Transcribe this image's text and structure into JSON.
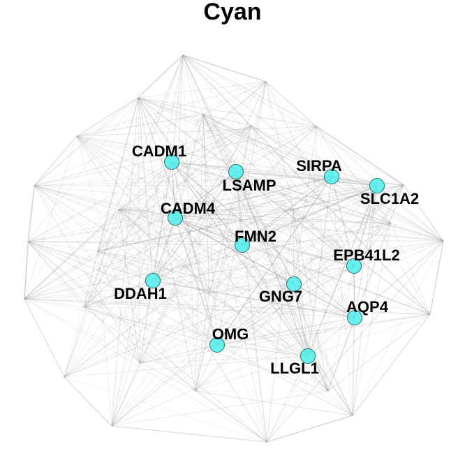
{
  "title": "Cyan",
  "node_color": "#4ff0ec",
  "edge_color": "#9a9a9a",
  "nodes": [
    {
      "id": "CADM1",
      "label": "CADM1"
    },
    {
      "id": "LSAMP",
      "label": "LSAMP"
    },
    {
      "id": "SIRPA",
      "label": "SIRPA"
    },
    {
      "id": "SLC1A2",
      "label": "SLC1A2"
    },
    {
      "id": "CADM4",
      "label": "CADM4"
    },
    {
      "id": "FMN2",
      "label": "FMN2"
    },
    {
      "id": "EPB41L2",
      "label": "EPB41L2"
    },
    {
      "id": "DDAH1",
      "label": "DDAH1"
    },
    {
      "id": "GNG7",
      "label": "GNG7"
    },
    {
      "id": "AQP4",
      "label": "AQP4"
    },
    {
      "id": "OMG",
      "label": "OMG"
    },
    {
      "id": "LLGL1",
      "label": "LLGL1"
    }
  ]
}
